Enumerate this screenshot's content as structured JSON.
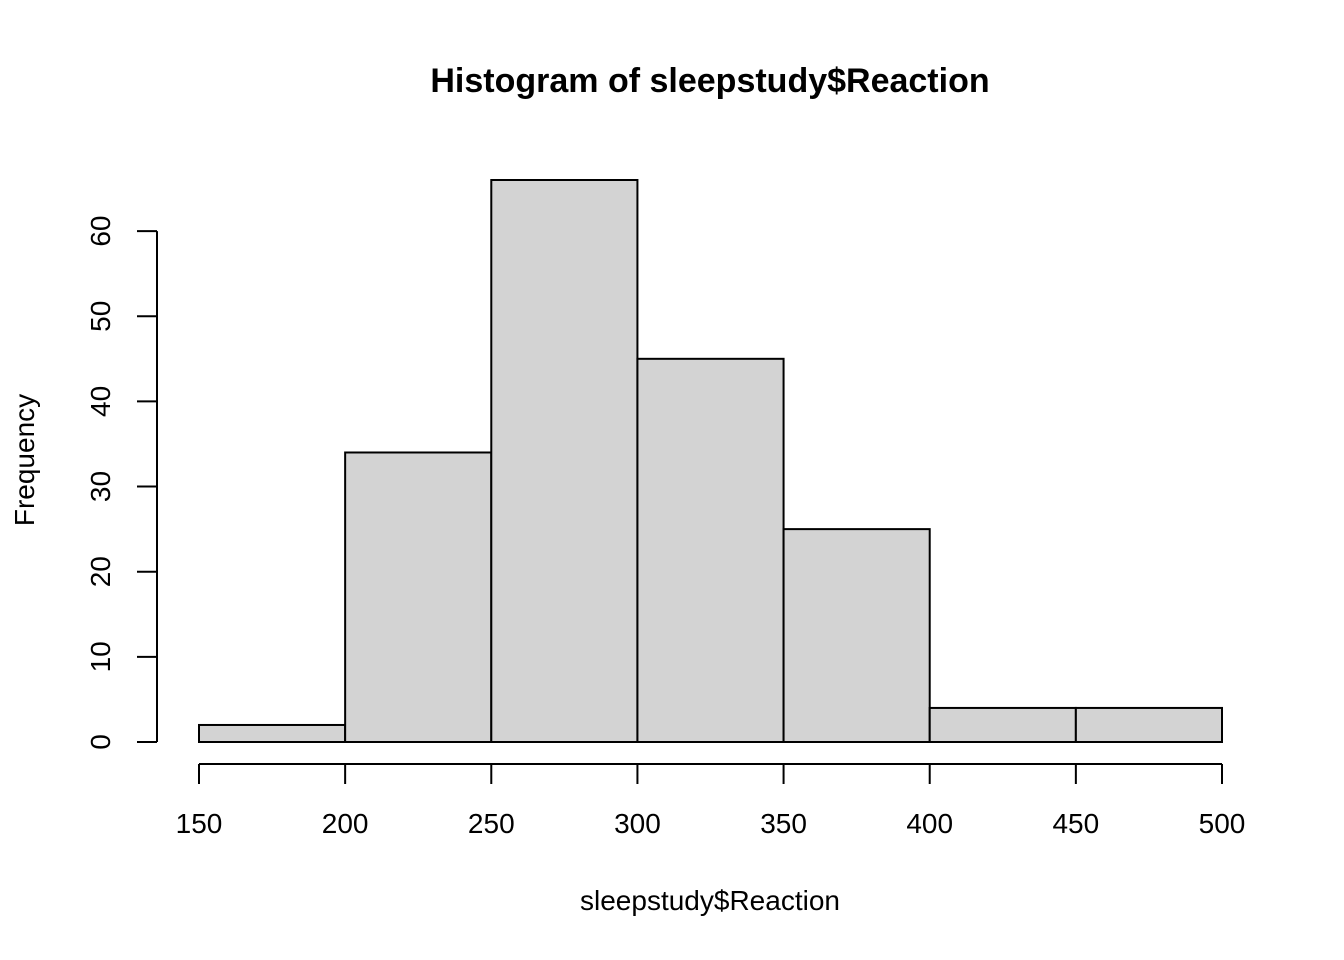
{
  "chart_data": {
    "type": "bar",
    "title": "Histogram of sleepstudy$Reaction",
    "xlabel": "sleepstudy$Reaction",
    "ylabel": "Frequency",
    "breaks": [
      150,
      200,
      250,
      300,
      350,
      400,
      450,
      500
    ],
    "counts": [
      2,
      34,
      66,
      45,
      25,
      4,
      4
    ],
    "xlim": [
      150,
      500
    ],
    "ylim": [
      0,
      66
    ],
    "x_ticks": [
      150,
      200,
      250,
      300,
      350,
      400,
      450,
      500
    ],
    "y_ticks": [
      0,
      10,
      20,
      30,
      40,
      50,
      60
    ],
    "grid": false,
    "bar_color": "#d3d3d3",
    "border_color": "#000000"
  }
}
